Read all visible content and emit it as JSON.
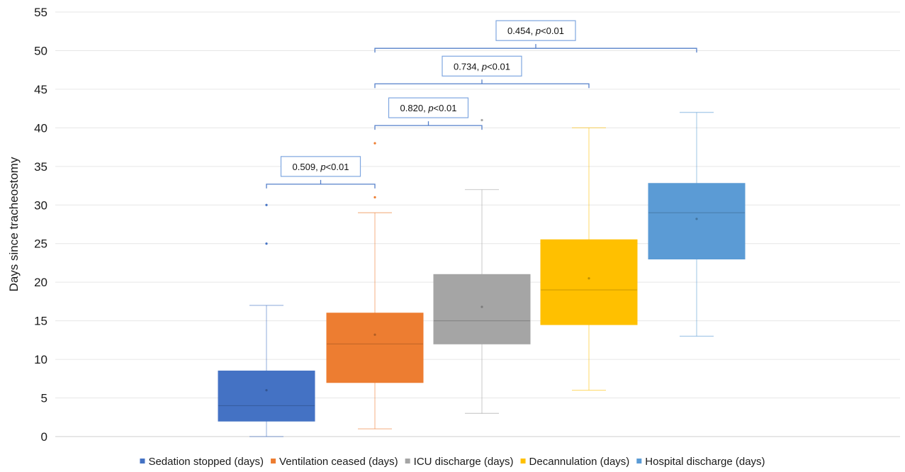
{
  "chart_data": {
    "type": "box",
    "ylabel": "Days since tracheostomy",
    "ylim": [
      0,
      55
    ],
    "y_ticks": [
      0,
      5,
      10,
      15,
      20,
      25,
      30,
      35,
      40,
      45,
      50,
      55
    ],
    "grid": "horizontal",
    "legend_position": "bottom",
    "series": [
      {
        "name": "Sedation stopped (days)",
        "color": "#4472C4",
        "min": 0,
        "q1": 2,
        "median": 4,
        "q3": 8.5,
        "max": 17,
        "mean": 6,
        "outliers": [
          25,
          30
        ]
      },
      {
        "name": "Ventilation ceased (days)",
        "color": "#ED7D31",
        "min": 1,
        "q1": 7,
        "median": 12,
        "q3": 16,
        "max": 29,
        "mean": 13.2,
        "outliers": [
          31,
          38
        ]
      },
      {
        "name": "ICU discharge (days)",
        "color": "#A5A5A5",
        "min": 3,
        "q1": 12,
        "median": 15,
        "q3": 21,
        "max": 32,
        "mean": 16.8,
        "outliers": [
          41
        ]
      },
      {
        "name": "Decannulation (days)",
        "color": "#FFC000",
        "min": 6,
        "q1": 14.5,
        "median": 19,
        "q3": 25.5,
        "max": 40,
        "mean": 20.5,
        "outliers": []
      },
      {
        "name": "Hospital discharge (days)",
        "color": "#5B9BD5",
        "min": 13,
        "q1": 23,
        "median": 29,
        "q3": 32.8,
        "max": 42,
        "mean": 28.2,
        "outliers": []
      }
    ],
    "annotations": [
      {
        "from": 0,
        "to": 1,
        "y": 32.7,
        "label": "0.509, ",
        "p_label": "p",
        "tail": "<0.01"
      },
      {
        "from": 1,
        "to": 2,
        "y": 40.3,
        "label": "0.820, ",
        "p_label": "p",
        "tail": "<0.01"
      },
      {
        "from": 1,
        "to": 3,
        "y": 45.7,
        "label": "0.734, ",
        "p_label": "p",
        "tail": "<0.01"
      },
      {
        "from": 1,
        "to": 4,
        "y": 50.3,
        "label": "0.454, ",
        "p_label": "p",
        "tail": "<0.01"
      }
    ]
  }
}
